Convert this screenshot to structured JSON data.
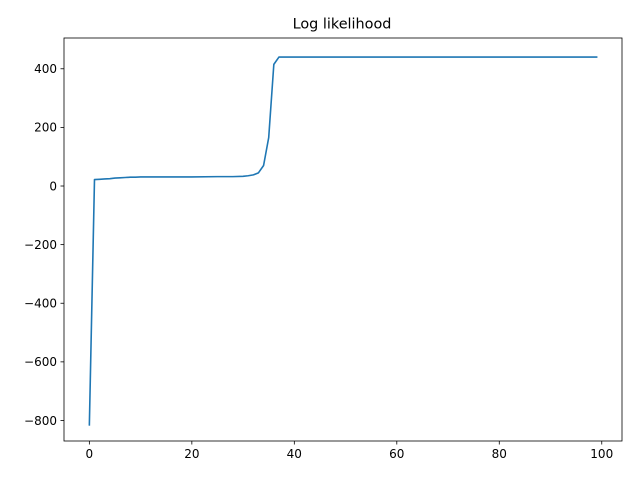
{
  "chart_data": {
    "type": "line",
    "title": "Log likelihood",
    "xlabel": "",
    "ylabel": "",
    "xlim": [
      -4.95,
      103.95
    ],
    "ylim": [
      -870,
      505
    ],
    "xticks": [
      0,
      20,
      40,
      60,
      80,
      100
    ],
    "yticks": [
      -800,
      -600,
      -400,
      -200,
      0,
      200,
      400
    ],
    "grid": false,
    "series": [
      {
        "color": "#1f77b4",
        "x": [
          0,
          1,
          2,
          3,
          4,
          5,
          6,
          7,
          8,
          9,
          10,
          12,
          15,
          20,
          25,
          28,
          30,
          31,
          32,
          33,
          34,
          35,
          36,
          37,
          38,
          40,
          50,
          60,
          70,
          80,
          90,
          99
        ],
        "y": [
          -815,
          22,
          23,
          24,
          25,
          27,
          28,
          29,
          30,
          30,
          31,
          31,
          31,
          31,
          32,
          32,
          33,
          35,
          38,
          45,
          70,
          165,
          415,
          440,
          440,
          440,
          440,
          440,
          440,
          440,
          440,
          440
        ]
      }
    ]
  }
}
